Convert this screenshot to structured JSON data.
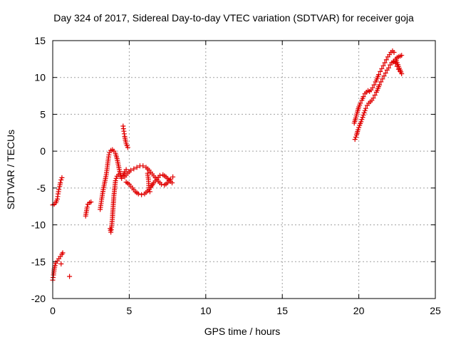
{
  "chart_data": {
    "type": "scatter",
    "title": "Day 324 of 2017, Sidereal Day-to-day VTEC variation (SDTVAR) for receiver goja",
    "xlabel": "GPS time / hours",
    "ylabel": "SDTVAR / TECUs",
    "xlim": [
      0,
      25
    ],
    "ylim": [
      -20,
      15
    ],
    "xticks": [
      0,
      5,
      10,
      15,
      20,
      25
    ],
    "yticks": [
      -20,
      -15,
      -10,
      -5,
      0,
      5,
      10,
      15
    ],
    "xtick_labels": [
      "0",
      "5",
      "10",
      "15",
      "20",
      "25"
    ],
    "ytick_labels": [
      "-20",
      "-15",
      "-10",
      "-5",
      "0",
      "5",
      "10",
      "15"
    ],
    "grid": true,
    "marker": "+",
    "color": "#e00000",
    "segments": [
      {
        "name": "seg-a",
        "points": [
          [
            0.0,
            -7.3
          ],
          [
            0.1,
            -7.2
          ],
          [
            0.2,
            -7.0
          ],
          [
            0.3,
            -6.5
          ],
          [
            0.35,
            -5.8
          ],
          [
            0.4,
            -5.2
          ],
          [
            0.45,
            -4.8
          ],
          [
            0.5,
            -4.3
          ],
          [
            0.55,
            -3.9
          ],
          [
            0.6,
            -3.6
          ]
        ]
      },
      {
        "name": "seg-b",
        "points": [
          [
            0.0,
            -17.5
          ],
          [
            0.05,
            -16.8
          ],
          [
            0.1,
            -16.0
          ],
          [
            0.15,
            -15.5
          ],
          [
            0.2,
            -15.2
          ],
          [
            0.3,
            -14.9
          ],
          [
            0.4,
            -14.6
          ],
          [
            0.5,
            -14.3
          ],
          [
            0.6,
            -14.0
          ],
          [
            0.65,
            -13.8
          ]
        ]
      },
      {
        "name": "seg-b-outliers",
        "points": [
          [
            0.55,
            -15.3
          ],
          [
            1.1,
            -17.0
          ]
        ]
      },
      {
        "name": "seg-c",
        "points": [
          [
            2.15,
            -8.8
          ],
          [
            2.25,
            -7.6
          ],
          [
            2.3,
            -7.2
          ],
          [
            2.4,
            -7.0
          ],
          [
            2.5,
            -6.9
          ]
        ]
      },
      {
        "name": "seg-d-rise",
        "points": [
          [
            3.1,
            -7.9
          ],
          [
            3.2,
            -6.5
          ],
          [
            3.3,
            -5.2
          ],
          [
            3.4,
            -4.2
          ],
          [
            3.5,
            -3.2
          ],
          [
            3.55,
            -2.4
          ],
          [
            3.6,
            -1.6
          ],
          [
            3.65,
            -0.8
          ],
          [
            3.7,
            -0.2
          ],
          [
            3.8,
            0.1
          ],
          [
            3.9,
            0.2
          ],
          [
            4.0,
            0.0
          ],
          [
            4.1,
            -0.3
          ],
          [
            4.2,
            -1.0
          ],
          [
            4.3,
            -2.0
          ],
          [
            4.4,
            -3.0
          ],
          [
            4.5,
            -3.7
          ],
          [
            4.6,
            -3.3
          ],
          [
            4.7,
            -2.8
          ],
          [
            4.8,
            -2.5
          ]
        ]
      },
      {
        "name": "seg-d-dip",
        "points": [
          [
            3.75,
            -10.5
          ],
          [
            3.8,
            -11.0
          ],
          [
            3.85,
            -10.3
          ],
          [
            3.9,
            -9.0
          ],
          [
            3.95,
            -7.5
          ],
          [
            4.0,
            -6.0
          ],
          [
            4.05,
            -5.0
          ],
          [
            4.1,
            -4.0
          ],
          [
            4.2,
            -3.4
          ],
          [
            4.3,
            -3.2
          ]
        ]
      },
      {
        "name": "seg-d-spike",
        "points": [
          [
            4.6,
            3.4
          ],
          [
            4.65,
            2.7
          ],
          [
            4.7,
            2.0
          ],
          [
            4.75,
            1.5
          ],
          [
            4.8,
            1.0
          ],
          [
            4.9,
            0.5
          ]
        ]
      },
      {
        "name": "seg-d-wave1",
        "points": [
          [
            4.7,
            -3.5
          ],
          [
            4.9,
            -3.0
          ],
          [
            5.1,
            -2.6
          ],
          [
            5.3,
            -2.4
          ],
          [
            5.5,
            -2.2
          ],
          [
            5.7,
            -2.0
          ],
          [
            5.9,
            -2.0
          ],
          [
            6.1,
            -2.2
          ],
          [
            6.3,
            -2.6
          ],
          [
            6.5,
            -3.1
          ],
          [
            6.7,
            -3.6
          ],
          [
            6.9,
            -4.1
          ],
          [
            7.1,
            -4.5
          ],
          [
            7.3,
            -4.6
          ],
          [
            7.5,
            -4.3
          ],
          [
            7.7,
            -3.8
          ],
          [
            7.85,
            -3.5
          ]
        ]
      },
      {
        "name": "seg-d-wave2",
        "points": [
          [
            4.8,
            -4.2
          ],
          [
            5.0,
            -4.5
          ],
          [
            5.2,
            -5.0
          ],
          [
            5.4,
            -5.5
          ],
          [
            5.6,
            -5.8
          ],
          [
            5.8,
            -5.9
          ],
          [
            6.0,
            -5.8
          ],
          [
            6.2,
            -5.4
          ],
          [
            6.4,
            -4.9
          ],
          [
            6.6,
            -4.3
          ],
          [
            6.8,
            -3.8
          ],
          [
            7.0,
            -3.3
          ],
          [
            7.2,
            -3.2
          ],
          [
            7.4,
            -3.5
          ],
          [
            7.6,
            -3.9
          ],
          [
            7.8,
            -4.3
          ]
        ]
      },
      {
        "name": "seg-d-side",
        "points": [
          [
            6.2,
            -3.0
          ],
          [
            6.25,
            -3.8
          ],
          [
            6.3,
            -5.2
          ],
          [
            6.35,
            -5.5
          ]
        ]
      },
      {
        "name": "seg-e-upper",
        "points": [
          [
            19.7,
            3.8
          ],
          [
            19.8,
            4.5
          ],
          [
            19.9,
            5.3
          ],
          [
            20.0,
            6.0
          ],
          [
            20.1,
            6.5
          ],
          [
            20.2,
            6.9
          ],
          [
            20.3,
            7.4
          ],
          [
            20.4,
            7.8
          ],
          [
            20.5,
            8.0
          ],
          [
            20.6,
            8.2
          ],
          [
            20.7,
            8.1
          ],
          [
            20.8,
            8.3
          ],
          [
            20.9,
            8.6
          ],
          [
            21.0,
            9.0
          ],
          [
            21.1,
            9.4
          ],
          [
            21.2,
            9.9
          ],
          [
            21.3,
            10.4
          ],
          [
            21.4,
            10.8
          ],
          [
            21.5,
            11.2
          ],
          [
            21.6,
            11.6
          ],
          [
            21.7,
            12.0
          ],
          [
            21.8,
            12.4
          ],
          [
            21.9,
            12.8
          ],
          [
            22.0,
            13.1
          ],
          [
            22.1,
            13.4
          ],
          [
            22.2,
            13.6
          ],
          [
            22.3,
            13.4
          ]
        ]
      },
      {
        "name": "seg-e-lower",
        "points": [
          [
            19.75,
            1.6
          ],
          [
            19.85,
            2.2
          ],
          [
            19.95,
            2.9
          ],
          [
            20.05,
            3.5
          ],
          [
            20.15,
            4.0
          ],
          [
            20.25,
            4.6
          ],
          [
            20.35,
            5.2
          ],
          [
            20.45,
            5.8
          ],
          [
            20.55,
            6.2
          ],
          [
            20.65,
            6.5
          ],
          [
            20.75,
            6.7
          ],
          [
            20.85,
            6.9
          ],
          [
            20.95,
            7.2
          ],
          [
            21.05,
            7.6
          ],
          [
            21.15,
            8.0
          ],
          [
            21.25,
            8.5
          ],
          [
            21.35,
            9.0
          ],
          [
            21.45,
            9.4
          ],
          [
            21.55,
            9.8
          ],
          [
            21.65,
            10.2
          ],
          [
            21.75,
            10.6
          ],
          [
            21.85,
            11.0
          ],
          [
            21.95,
            11.3
          ],
          [
            22.05,
            11.7
          ],
          [
            22.15,
            12.0
          ],
          [
            22.25,
            12.1
          ]
        ]
      },
      {
        "name": "seg-e-tail",
        "points": [
          [
            22.3,
            12.2
          ],
          [
            22.4,
            11.9
          ],
          [
            22.5,
            11.5
          ],
          [
            22.6,
            11.1
          ],
          [
            22.7,
            10.8
          ],
          [
            22.8,
            10.5
          ],
          [
            22.4,
            12.5
          ],
          [
            22.5,
            12.7
          ],
          [
            22.6,
            12.8
          ],
          [
            22.7,
            12.9
          ],
          [
            22.8,
            13.0
          ]
        ]
      }
    ]
  }
}
